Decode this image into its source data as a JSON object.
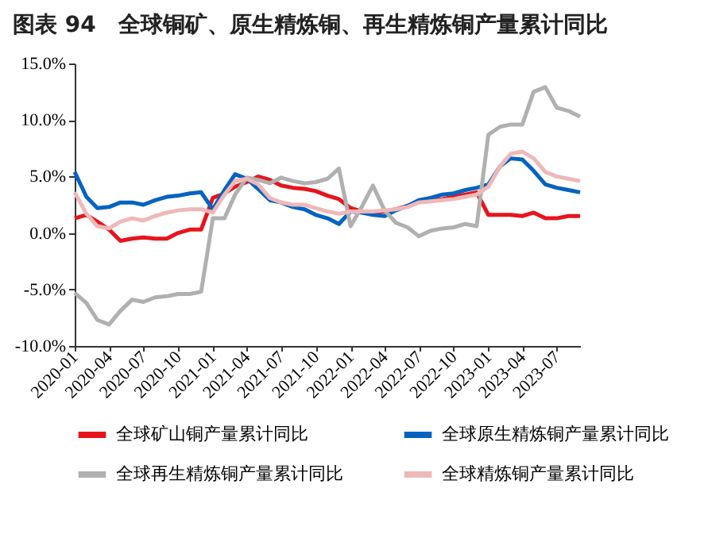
{
  "chart_data": {
    "type": "line",
    "title": "图表 94　全球铜矿、原生精炼铜、再生精炼铜产量累计同比",
    "x": [
      "2020-01",
      "2020-02",
      "2020-03",
      "2020-04",
      "2020-05",
      "2020-06",
      "2020-07",
      "2020-08",
      "2020-09",
      "2020-10",
      "2020-11",
      "2020-12",
      "2021-01",
      "2021-02",
      "2021-03",
      "2021-04",
      "2021-05",
      "2021-06",
      "2021-07",
      "2021-08",
      "2021-09",
      "2021-10",
      "2021-11",
      "2021-12",
      "2022-01",
      "2022-02",
      "2022-03",
      "2022-04",
      "2022-05",
      "2022-06",
      "2022-07",
      "2022-08",
      "2022-09",
      "2022-10",
      "2022-11",
      "2022-12",
      "2023-01",
      "2023-02",
      "2023-03",
      "2023-04",
      "2023-05",
      "2023-06",
      "2023-07",
      "2023-08",
      "2023-09"
    ],
    "series": [
      {
        "name": "全球矿山铜产量累计同比",
        "color": "#e8141c",
        "values": [
          1.3,
          1.6,
          1.0,
          0.3,
          -0.7,
          -0.5,
          -0.4,
          -0.5,
          -0.5,
          0.0,
          0.3,
          0.3,
          3.1,
          3.5,
          4.1,
          4.5,
          5.0,
          4.7,
          4.2,
          4.0,
          3.9,
          3.7,
          3.3,
          3.0,
          2.2,
          1.9,
          1.8,
          1.9,
          2.1,
          2.4,
          2.8,
          2.9,
          3.0,
          3.2,
          3.4,
          3.6,
          1.6,
          1.6,
          1.6,
          1.5,
          1.8,
          1.3,
          1.3,
          1.5,
          1.5
        ]
      },
      {
        "name": "全球原生精炼铜产量累计同比",
        "color": "#0563c1",
        "values": [
          5.4,
          3.2,
          2.2,
          2.3,
          2.7,
          2.7,
          2.5,
          2.9,
          3.2,
          3.3,
          3.5,
          3.6,
          2.1,
          3.8,
          5.2,
          4.8,
          3.9,
          2.9,
          2.7,
          2.3,
          2.1,
          1.6,
          1.3,
          0.8,
          1.9,
          1.8,
          1.6,
          1.5,
          2.0,
          2.4,
          2.9,
          3.1,
          3.4,
          3.5,
          3.8,
          4.0,
          4.3,
          5.9,
          6.6,
          6.5,
          5.5,
          4.3,
          4.0,
          3.8,
          3.6
        ]
      },
      {
        "name": "全球再生精炼铜产量累计同比",
        "color": "#b0b0b0",
        "values": [
          -5.3,
          -6.2,
          -7.7,
          -8.1,
          -6.9,
          -5.9,
          -6.1,
          -5.7,
          -5.6,
          -5.4,
          -5.4,
          -5.2,
          1.3,
          1.3,
          3.4,
          4.9,
          4.7,
          4.4,
          4.9,
          4.6,
          4.4,
          4.5,
          4.8,
          5.7,
          0.6,
          2.4,
          4.2,
          2.0,
          0.9,
          0.5,
          -0.3,
          0.2,
          0.4,
          0.5,
          0.8,
          0.6,
          8.7,
          9.4,
          9.6,
          9.6,
          12.5,
          12.9,
          11.1,
          10.8,
          10.3
        ]
      },
      {
        "name": "全球精炼铜产量累计同比",
        "color": "#efb8b8",
        "values": [
          3.6,
          1.7,
          0.6,
          0.4,
          1.0,
          1.3,
          1.1,
          1.5,
          1.8,
          2.0,
          2.1,
          2.1,
          1.8,
          3.4,
          4.6,
          4.8,
          4.3,
          3.1,
          2.7,
          2.5,
          2.5,
          2.2,
          1.9,
          1.7,
          1.9,
          1.9,
          1.9,
          2.0,
          2.1,
          2.3,
          2.7,
          2.8,
          2.9,
          3.0,
          3.2,
          3.4,
          4.1,
          5.9,
          7.0,
          7.2,
          6.6,
          5.4,
          5.0,
          4.8,
          4.6
        ]
      }
    ],
    "xlim": [
      "2020-01",
      "2023-09"
    ],
    "xticks": [
      "2020-01",
      "2020-04",
      "2020-07",
      "2020-10",
      "2021-01",
      "2021-04",
      "2021-07",
      "2021-10",
      "2022-01",
      "2022-04",
      "2022-07",
      "2022-10",
      "2023-01",
      "2023-04",
      "2023-07"
    ],
    "ylim": [
      -10,
      15
    ],
    "yticks": [
      {
        "value": -10,
        "label": "-10.0%"
      },
      {
        "value": -5,
        "label": "-5.0%"
      },
      {
        "value": 0,
        "label": "0.0%"
      },
      {
        "value": 5,
        "label": "5.0%"
      },
      {
        "value": 10,
        "label": "10.0%"
      },
      {
        "value": 15,
        "label": "15.0%"
      }
    ],
    "grid": false,
    "legend": "bottom",
    "marker": "none",
    "line_style": "solid"
  }
}
